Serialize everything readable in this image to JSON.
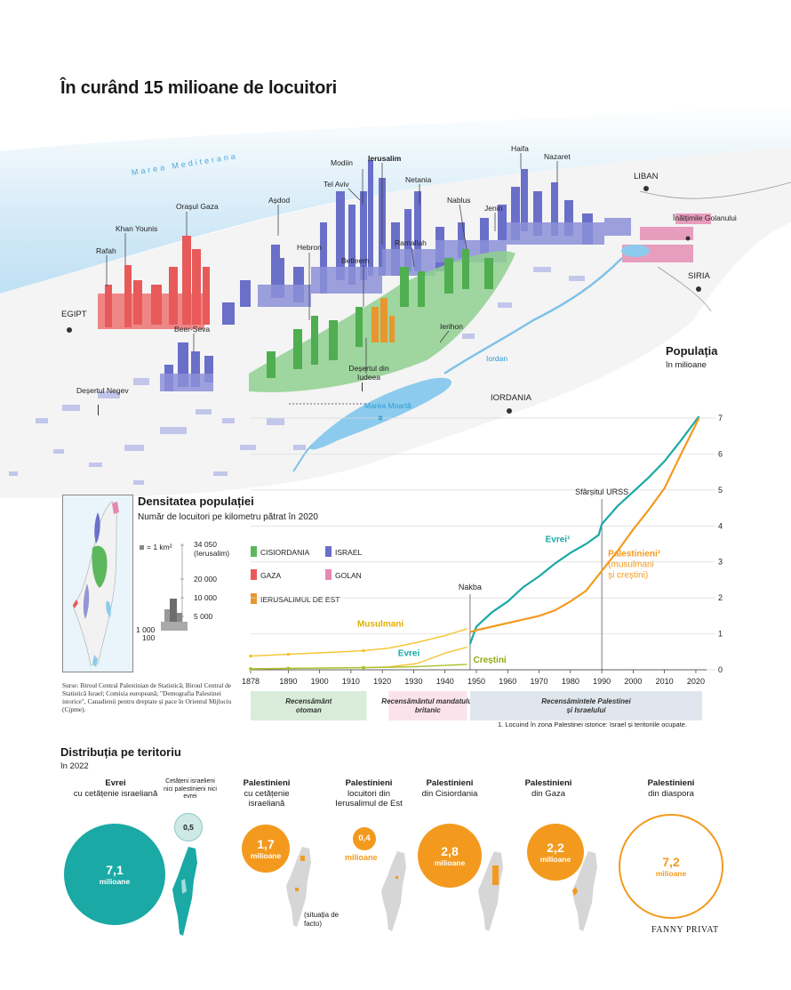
{
  "title": "În curând 15 milioane de locuitori",
  "map": {
    "sea": "Marea Mediterana",
    "places": [
      "Rafah",
      "Khan Younis",
      "Orașul Gaza",
      "Așdod",
      "Modiin",
      "Ierusalim",
      "Tel Aviv",
      "Netania",
      "Haifa",
      "Nazaret",
      "Hebron",
      "Betleem",
      "Ramallah",
      "Nablus",
      "Jenin",
      "Ierihon",
      "Beer-Ṣeva",
      "Deșertul din Iudeea",
      "Deșertul Negev",
      "Înălțimile Golanului"
    ],
    "countries": [
      "LIBAN",
      "SIRIA",
      "EGIPT",
      "IORDANIA"
    ],
    "waters": [
      "Iordan",
      "Marea Moartă"
    ]
  },
  "density": {
    "title": "Densitatea populației",
    "subtitle": "Număr de locuitori pe kilometru pătrat în 2020",
    "unit_note": "= 1 km²",
    "scale": [
      "34 050 (Ierusalim)",
      "20 000",
      "10 000",
      "5 000",
      "1 000",
      "100"
    ],
    "legend": [
      {
        "label": "CISIORDANIA",
        "color": "#5cb85c"
      },
      {
        "label": "ISRAEL",
        "color": "#6a6fc8"
      },
      {
        "label": "GAZA",
        "color": "#e85a5a"
      },
      {
        "label": "GOLAN",
        "color": "#e488b0"
      },
      {
        "label": "IERUSALIMUL DE EST",
        "color": "#e8962e"
      }
    ]
  },
  "sources": "Surse: Biroul Central Palestinian de Statistică; Biroul Central de Statistică Israel; Comisia europeană; \"Demografia Palestinei istorice\", Canadienii pentru dreptate și pace în Orientul Mijlociu (Cjpme).",
  "population": {
    "title": "Populația",
    "subtitle": "în milioane"
  },
  "chart_data": {
    "type": "line",
    "title": "Populația",
    "subtitle": "în milioane",
    "xlim": [
      1878,
      2022
    ],
    "ylim": [
      0,
      7
    ],
    "x_ticks": [
      1878,
      1890,
      1900,
      1910,
      1920,
      1930,
      1940,
      1950,
      1960,
      1970,
      1980,
      1990,
      2000,
      2010,
      2020
    ],
    "y_ticks": [
      0,
      1,
      2,
      3,
      4,
      5,
      6,
      7
    ],
    "series": [
      {
        "name": "Musulmani",
        "color": "#f5c32c",
        "points": [
          [
            1878,
            0.38
          ],
          [
            1890,
            0.43
          ],
          [
            1914,
            0.53
          ],
          [
            1922,
            0.6
          ],
          [
            1931,
            0.76
          ],
          [
            1940,
            0.95
          ],
          [
            1947,
            1.14
          ]
        ]
      },
      {
        "name": "Evrei",
        "color": "#f5c32c",
        "points": [
          [
            1878,
            0.02
          ],
          [
            1890,
            0.04
          ],
          [
            1914,
            0.06
          ],
          [
            1922,
            0.08
          ],
          [
            1931,
            0.17
          ],
          [
            1940,
            0.46
          ],
          [
            1947,
            0.63
          ]
        ]
      },
      {
        "name": "Creștini",
        "color": "#a7c22c",
        "points": [
          [
            1878,
            0.03
          ],
          [
            1890,
            0.04
          ],
          [
            1914,
            0.06
          ],
          [
            1922,
            0.07
          ],
          [
            1931,
            0.09
          ],
          [
            1940,
            0.12
          ],
          [
            1947,
            0.15
          ]
        ]
      },
      {
        "name": "Evrei¹",
        "color": "#1aa9a5",
        "points": [
          [
            1948,
            0.72
          ],
          [
            1950,
            1.2
          ],
          [
            1955,
            1.6
          ],
          [
            1960,
            1.9
          ],
          [
            1965,
            2.3
          ],
          [
            1970,
            2.6
          ],
          [
            1975,
            2.95
          ],
          [
            1980,
            3.25
          ],
          [
            1985,
            3.5
          ],
          [
            1989,
            3.75
          ],
          [
            1990,
            4.05
          ],
          [
            1995,
            4.55
          ],
          [
            2000,
            4.95
          ],
          [
            2005,
            5.35
          ],
          [
            2010,
            5.8
          ],
          [
            2015,
            6.35
          ],
          [
            2021,
            7.05
          ]
        ]
      },
      {
        "name": "Palestinieni¹ (musulmani și creștini)",
        "color": "#f39a1e",
        "points": [
          [
            1948,
            1.05
          ],
          [
            1950,
            1.1
          ],
          [
            1955,
            1.2
          ],
          [
            1960,
            1.3
          ],
          [
            1965,
            1.4
          ],
          [
            1970,
            1.5
          ],
          [
            1975,
            1.65
          ],
          [
            1980,
            1.9
          ],
          [
            1985,
            2.2
          ],
          [
            1990,
            2.75
          ],
          [
            1995,
            3.3
          ],
          [
            2000,
            3.9
          ],
          [
            2005,
            4.45
          ],
          [
            2010,
            5.05
          ],
          [
            2015,
            5.95
          ],
          [
            2021,
            7.0
          ]
        ]
      }
    ],
    "annotations": {
      "nakba": {
        "label": "Nakba",
        "x": 1948
      },
      "ussr": {
        "label": "Sfârșitul URSS",
        "x": 1990
      }
    },
    "periods": [
      {
        "label": "Recensământ otoman",
        "from": 1878,
        "to": 1915,
        "color": "#d9ecd9"
      },
      {
        "label": "Recensământul mandatului britanic",
        "from": 1922,
        "to": 1947,
        "color": "#fbe3ec"
      },
      {
        "label": "Recensămintele Palestinei și Israelului",
        "from": 1948,
        "to": 2022,
        "color": "#dfe6ee"
      }
    ],
    "footnote": "1. Locuind în zona Palestinei istorice: Israel și teritoriile ocupate."
  },
  "distribution": {
    "title": "Distribuția pe teritoriu",
    "subtitle": "în 2022",
    "groups": [
      {
        "bold": "Evrei",
        "rest": "cu cetățenie israeliană",
        "value": "7,1",
        "unit": "milioane",
        "color": "#1aa9a5"
      },
      {
        "bold": "",
        "rest": "Cetățeni israelieni nici palestinieni nici evrei",
        "value": "0,5",
        "unit": "",
        "color": "#cfe9e7"
      },
      {
        "bold": "Palestinieni",
        "rest": "cu cetățenie israeliană",
        "value": "1,7",
        "unit": "milioane",
        "color": "#f39a1e"
      },
      {
        "bold": "Palestinieni",
        "rest": "locuitori din Ierusalimul de Est",
        "value": "0,4",
        "unit": "milioane",
        "color": "#f39a1e"
      },
      {
        "bold": "Palestinieni",
        "rest": "din Cisiordania",
        "value": "2,8",
        "unit": "milioane",
        "color": "#f39a1e"
      },
      {
        "bold": "Palestinieni",
        "rest": "din Gaza",
        "value": "2,2",
        "unit": "milioane",
        "color": "#f39a1e"
      },
      {
        "bold": "Palestinieni",
        "rest": "din diaspora",
        "value": "7,2",
        "unit": "milioane",
        "color": "#f39a1e"
      }
    ],
    "defacto": "(situația de facto)"
  },
  "credit": "FANNY PRIVAT"
}
